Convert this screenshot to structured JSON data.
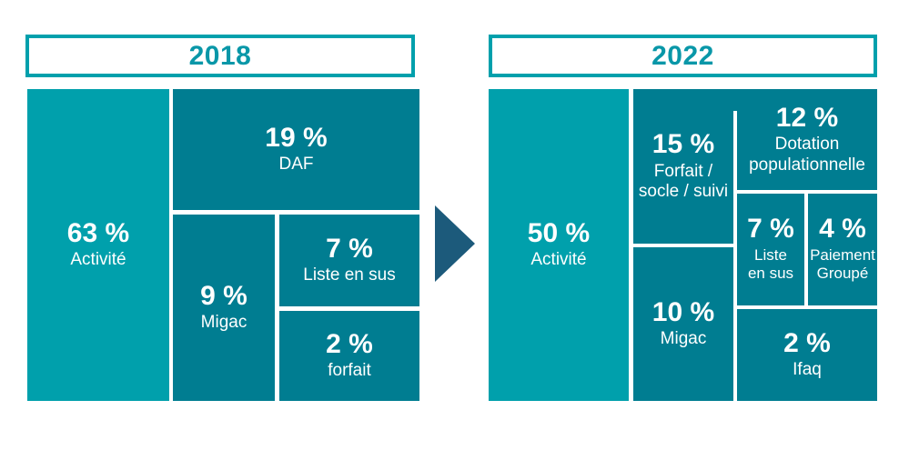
{
  "colors": {
    "light_teal": "#00A0AC",
    "dark_teal": "#007D91",
    "year_teal": "#0997A8",
    "arrow_blue": "#1C5A7B",
    "text_white": "#FFFFFF"
  },
  "panels": [
    {
      "year": "2018",
      "blocks": [
        {
          "pct": "63 %",
          "label": "Activité"
        },
        {
          "pct": "19 %",
          "label": "DAF"
        },
        {
          "pct": "9 %",
          "label": "Migac"
        },
        {
          "pct": "7 %",
          "label": "Liste en sus"
        },
        {
          "pct": "2 %",
          "label": "forfait"
        }
      ]
    },
    {
      "year": "2022",
      "blocks": [
        {
          "pct": "50 %",
          "label": "Activité"
        },
        {
          "pct": "15 %",
          "label": "Forfait /\nsocle / suivi"
        },
        {
          "pct": "12 %",
          "label": "Dotation\npopulationnelle"
        },
        {
          "pct": "7 %",
          "label": "Liste\nen sus"
        },
        {
          "pct": "4 %",
          "label": "Paiement\nGroupé"
        },
        {
          "pct": "10 %",
          "label": "Migac"
        },
        {
          "pct": "2 %",
          "label": "Ifaq"
        }
      ]
    }
  ],
  "chart_data": [
    {
      "type": "treemap",
      "title": "2018",
      "categories": [
        "Activité",
        "DAF",
        "Migac",
        "Liste en sus",
        "forfait"
      ],
      "values": [
        63,
        19,
        9,
        7,
        2
      ],
      "unit": "%",
      "highlight_category": "Activité"
    },
    {
      "type": "treemap",
      "title": "2022",
      "categories": [
        "Activité",
        "Forfait / socle / suivi",
        "Dotation populationnelle",
        "Migac",
        "Liste en sus",
        "Paiement Groupé",
        "Ifaq"
      ],
      "values": [
        50,
        15,
        12,
        10,
        7,
        4,
        2
      ],
      "unit": "%",
      "highlight_category": "Activité"
    }
  ]
}
